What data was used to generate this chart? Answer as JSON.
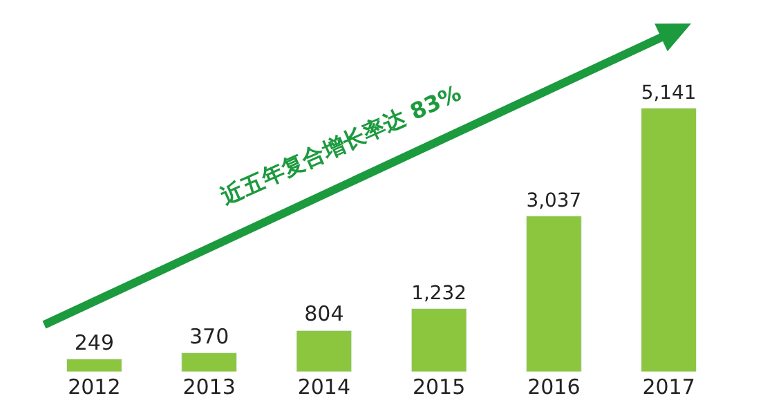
{
  "chart_data": {
    "type": "bar",
    "categories": [
      "2012",
      "2013",
      "2014",
      "2015",
      "2016",
      "2017"
    ],
    "values": [
      249,
      370,
      804,
      1232,
      3037,
      5141
    ],
    "value_labels": [
      "249",
      "370",
      "804",
      "1,232",
      "3,037",
      "5,141"
    ],
    "color": "#8cc63e",
    "annotations": [
      "近五年复合增长率达 83%"
    ],
    "grid": false,
    "legend": false
  }
}
